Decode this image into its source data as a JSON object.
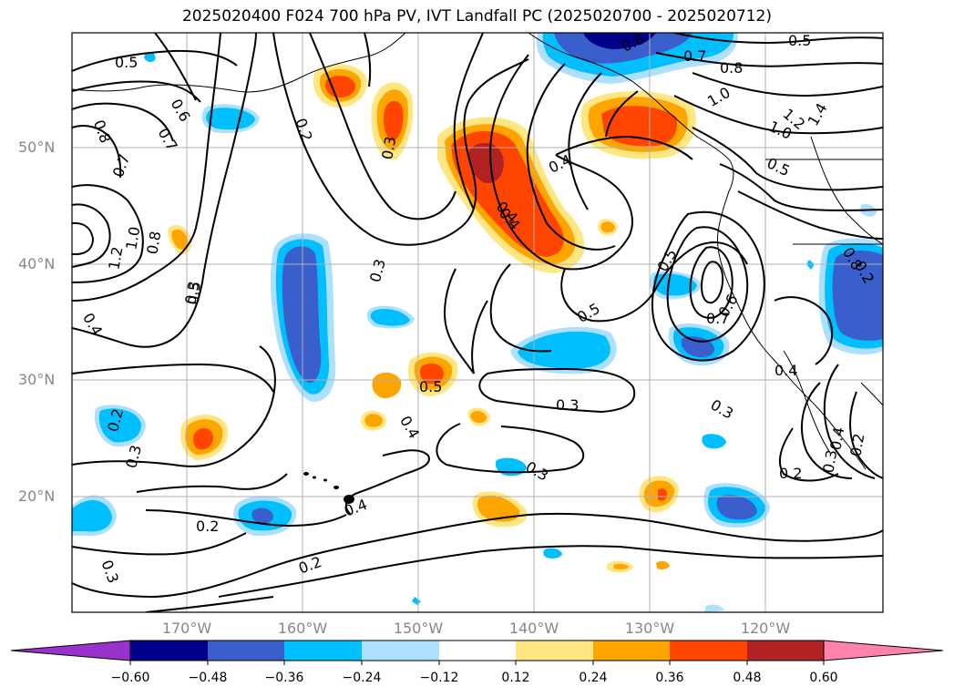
{
  "title": "2025020400 F024 700 hPa PV, IVT Landfall PC (2025020700 - 2025020712)",
  "map": {
    "lat_labels": [
      "50°N",
      "40°N",
      "30°N",
      "20°N"
    ],
    "lon_labels": [
      "170°W",
      "160°W",
      "150°W",
      "140°W",
      "130°W",
      "120°W"
    ],
    "contour_labels": [
      "0.5",
      "0.6",
      "0.7",
      "0.8",
      "0.2",
      "0.3",
      "0.5",
      "0.6",
      "0.7",
      "0.8",
      "1.0",
      "1.2",
      "1.4",
      "1.0",
      "0.5",
      "0.4",
      "0.4",
      "0.3",
      "0.5",
      "0.7",
      "0.6",
      "0.5",
      "0.5",
      "0.4",
      "0.3",
      "0.4",
      "0.3",
      "0.3",
      "0.2",
      "0.3",
      "0.4",
      "0.3",
      "0.2",
      "0.2",
      "0.4",
      "0.2",
      "0.3",
      "0.2",
      "0.3",
      "0.4",
      "0.2",
      "0.8",
      "0.7",
      "1.2",
      "1.0",
      "0.8",
      "0.5",
      "0.4"
    ]
  },
  "colorbar": {
    "ticks": [
      "−0.60",
      "−0.48",
      "−0.36",
      "−0.24",
      "−0.12",
      "0.12",
      "0.24",
      "0.36",
      "0.48",
      "0.60"
    ],
    "colors": [
      "#9932CC",
      "#00008B",
      "#3A5FCD",
      "#00BFFF",
      "#ADDFFF",
      "#FFFFFF",
      "#FFE680",
      "#FFA500",
      "#FF4500",
      "#B22222",
      "#FF82AB"
    ]
  }
}
